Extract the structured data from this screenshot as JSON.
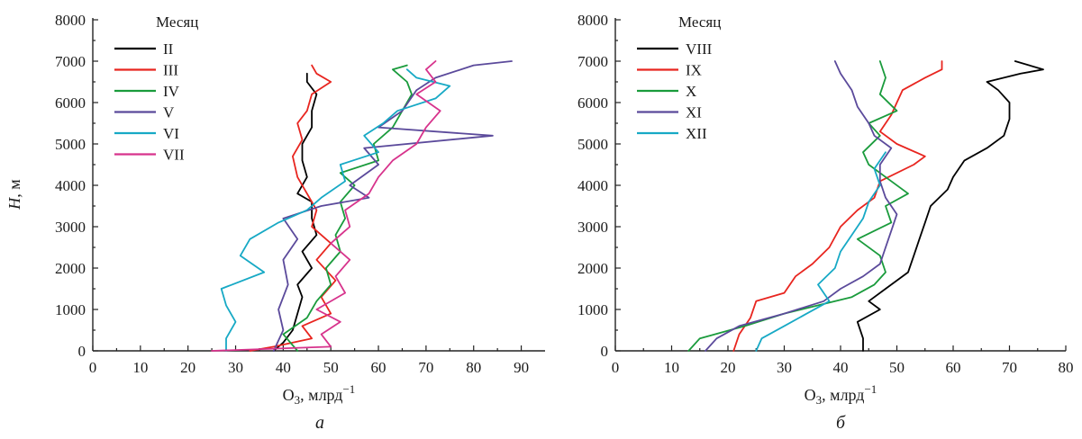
{
  "chart_data": [
    {
      "type": "line",
      "panel_label": "а",
      "xlabel_main": "O",
      "xlabel_sub": "3",
      "xlabel_unit": ", млрд",
      "xlabel_sup": "−1",
      "ylabel_main": "H",
      "ylabel_unit": ", м",
      "xlim": [
        0,
        95
      ],
      "ylim": [
        0,
        8000
      ],
      "xticks": [
        0,
        10,
        20,
        30,
        40,
        50,
        60,
        70,
        80,
        90
      ],
      "yticks": [
        0,
        1000,
        2000,
        3000,
        4000,
        5000,
        6000,
        7000,
        8000
      ],
      "show_ylabels": true,
      "legend": {
        "title": "Месяц",
        "position": "top-left"
      },
      "series": [
        {
          "name": "II",
          "color": "#000000",
          "points": [
            [
              38,
              0
            ],
            [
              40,
              200
            ],
            [
              42,
              500
            ],
            [
              43,
              900
            ],
            [
              44,
              1300
            ],
            [
              43,
              1600
            ],
            [
              46,
              2000
            ],
            [
              44,
              2400
            ],
            [
              47,
              2800
            ],
            [
              46,
              3200
            ],
            [
              46,
              3600
            ],
            [
              43,
              3800
            ],
            [
              45,
              4200
            ],
            [
              44,
              4600
            ],
            [
              44,
              5000
            ],
            [
              46,
              5400
            ],
            [
              46,
              5800
            ],
            [
              47,
              6200
            ],
            [
              45,
              6500
            ],
            [
              45,
              6700
            ]
          ]
        },
        {
          "name": "III",
          "color": "#e8251f",
          "points": [
            [
              33,
              0
            ],
            [
              38,
              100
            ],
            [
              46,
              300
            ],
            [
              44,
              600
            ],
            [
              50,
              900
            ],
            [
              48,
              1300
            ],
            [
              51,
              1700
            ],
            [
              47,
              2200
            ],
            [
              50,
              2600
            ],
            [
              46,
              3000
            ],
            [
              47,
              3400
            ],
            [
              45,
              3800
            ],
            [
              43,
              4200
            ],
            [
              42,
              4700
            ],
            [
              44,
              5100
            ],
            [
              43,
              5500
            ],
            [
              45,
              5800
            ],
            [
              46,
              6200
            ],
            [
              50,
              6500
            ],
            [
              47,
              6700
            ],
            [
              46,
              6900
            ]
          ]
        },
        {
          "name": "IV",
          "color": "#1a9b3c",
          "points": [
            [
              43,
              0
            ],
            [
              40,
              400
            ],
            [
              45,
              800
            ],
            [
              47,
              1200
            ],
            [
              50,
              1600
            ],
            [
              49,
              2000
            ],
            [
              52,
              2400
            ],
            [
              51,
              2800
            ],
            [
              53,
              3200
            ],
            [
              52,
              3600
            ],
            [
              55,
              4000
            ],
            [
              52,
              4300
            ],
            [
              60,
              4600
            ],
            [
              59,
              5000
            ],
            [
              63,
              5400
            ],
            [
              65,
              5800
            ],
            [
              67,
              6200
            ],
            [
              66,
              6500
            ],
            [
              63,
              6800
            ],
            [
              66,
              6900
            ]
          ]
        },
        {
          "name": "V",
          "color": "#5b4a9b",
          "points": [
            [
              38,
              0
            ],
            [
              40,
              500
            ],
            [
              39,
              1000
            ],
            [
              41,
              1600
            ],
            [
              40,
              2200
            ],
            [
              43,
              2700
            ],
            [
              40,
              3200
            ],
            [
              48,
              3500
            ],
            [
              58,
              3700
            ],
            [
              54,
              4000
            ],
            [
              60,
              4500
            ],
            [
              57,
              4900
            ],
            [
              84,
              5200
            ],
            [
              60,
              5400
            ],
            [
              65,
              5800
            ],
            [
              68,
              6300
            ],
            [
              72,
              6600
            ],
            [
              80,
              6900
            ],
            [
              88,
              7000
            ]
          ]
        },
        {
          "name": "VI",
          "color": "#17a9c5",
          "points": [
            [
              28,
              0
            ],
            [
              28,
              300
            ],
            [
              30,
              700
            ],
            [
              28,
              1100
            ],
            [
              27,
              1500
            ],
            [
              36,
              1900
            ],
            [
              31,
              2300
            ],
            [
              33,
              2700
            ],
            [
              39,
              3100
            ],
            [
              45,
              3400
            ],
            [
              48,
              3700
            ],
            [
              53,
              4100
            ],
            [
              52,
              4500
            ],
            [
              60,
              4800
            ],
            [
              57,
              5200
            ],
            [
              61,
              5500
            ],
            [
              64,
              5800
            ],
            [
              72,
              6100
            ],
            [
              75,
              6400
            ],
            [
              68,
              6600
            ],
            [
              66,
              6800
            ]
          ]
        },
        {
          "name": "VII",
          "color": "#d7338c",
          "points": [
            [
              25,
              0
            ],
            [
              50,
              100
            ],
            [
              48,
              400
            ],
            [
              52,
              700
            ],
            [
              47,
              1000
            ],
            [
              53,
              1400
            ],
            [
              51,
              1800
            ],
            [
              54,
              2200
            ],
            [
              50,
              2600
            ],
            [
              54,
              3000
            ],
            [
              53,
              3400
            ],
            [
              58,
              3800
            ],
            [
              60,
              4200
            ],
            [
              63,
              4600
            ],
            [
              68,
              5000
            ],
            [
              70,
              5400
            ],
            [
              73,
              5800
            ],
            [
              68,
              6200
            ],
            [
              72,
              6500
            ],
            [
              70,
              6800
            ],
            [
              72,
              7000
            ]
          ]
        }
      ]
    },
    {
      "type": "line",
      "panel_label": "б",
      "xlabel_main": "O",
      "xlabel_sub": "3",
      "xlabel_unit": ", млрд",
      "xlabel_sup": "−1",
      "xlim": [
        0,
        80
      ],
      "ylim": [
        0,
        8000
      ],
      "xticks": [
        0,
        10,
        20,
        30,
        40,
        50,
        60,
        70,
        80
      ],
      "yticks": [
        0,
        1000,
        2000,
        3000,
        4000,
        5000,
        6000,
        7000,
        8000
      ],
      "show_ylabels": true,
      "legend": {
        "title": "Месяц",
        "position": "top-left"
      },
      "series": [
        {
          "name": "VIII",
          "color": "#000000",
          "points": [
            [
              44,
              0
            ],
            [
              44,
              300
            ],
            [
              43,
              700
            ],
            [
              47,
              1000
            ],
            [
              45,
              1200
            ],
            [
              48,
              1500
            ],
            [
              52,
              1900
            ],
            [
              53,
              2300
            ],
            [
              54,
              2700
            ],
            [
              55,
              3100
            ],
            [
              56,
              3500
            ],
            [
              59,
              3900
            ],
            [
              60,
              4200
            ],
            [
              62,
              4600
            ],
            [
              66,
              4900
            ],
            [
              69,
              5200
            ],
            [
              70,
              5600
            ],
            [
              70,
              6000
            ],
            [
              68,
              6300
            ],
            [
              66,
              6500
            ],
            [
              72,
              6700
            ],
            [
              76,
              6800
            ],
            [
              71,
              7000
            ]
          ]
        },
        {
          "name": "IX",
          "color": "#e8251f",
          "points": [
            [
              21,
              0
            ],
            [
              22,
              400
            ],
            [
              24,
              800
            ],
            [
              25,
              1200
            ],
            [
              30,
              1400
            ],
            [
              32,
              1800
            ],
            [
              35,
              2100
            ],
            [
              38,
              2500
            ],
            [
              40,
              3000
            ],
            [
              43,
              3400
            ],
            [
              46,
              3700
            ],
            [
              47,
              4100
            ],
            [
              53,
              4500
            ],
            [
              55,
              4700
            ],
            [
              50,
              5000
            ],
            [
              47,
              5300
            ],
            [
              49,
              5700
            ],
            [
              50,
              6000
            ],
            [
              51,
              6300
            ],
            [
              55,
              6600
            ],
            [
              58,
              6800
            ],
            [
              58,
              7000
            ]
          ]
        },
        {
          "name": "X",
          "color": "#1a9b3c",
          "points": [
            [
              13,
              0
            ],
            [
              15,
              300
            ],
            [
              23,
              600
            ],
            [
              30,
              900
            ],
            [
              42,
              1300
            ],
            [
              46,
              1600
            ],
            [
              48,
              1900
            ],
            [
              47,
              2300
            ],
            [
              43,
              2700
            ],
            [
              49,
              3100
            ],
            [
              48,
              3500
            ],
            [
              52,
              3800
            ],
            [
              48,
              4200
            ],
            [
              45,
              4500
            ],
            [
              44,
              4800
            ],
            [
              47,
              5200
            ],
            [
              45,
              5500
            ],
            [
              50,
              5800
            ],
            [
              47,
              6200
            ],
            [
              48,
              6600
            ],
            [
              47,
              7000
            ]
          ]
        },
        {
          "name": "XI",
          "color": "#5b4a9b",
          "points": [
            [
              16,
              0
            ],
            [
              18,
              300
            ],
            [
              22,
              600
            ],
            [
              30,
              900
            ],
            [
              37,
              1200
            ],
            [
              40,
              1500
            ],
            [
              44,
              1800
            ],
            [
              47,
              2100
            ],
            [
              48,
              2500
            ],
            [
              49,
              2900
            ],
            [
              50,
              3300
            ],
            [
              48,
              3700
            ],
            [
              47,
              4100
            ],
            [
              47,
              4500
            ],
            [
              49,
              4900
            ],
            [
              46,
              5200
            ],
            [
              45,
              5500
            ],
            [
              43,
              5900
            ],
            [
              42,
              6300
            ],
            [
              40,
              6700
            ],
            [
              39,
              7000
            ]
          ]
        },
        {
          "name": "XII",
          "color": "#17a9c5",
          "points": [
            [
              25,
              0
            ],
            [
              26,
              300
            ],
            [
              30,
              600
            ],
            [
              34,
              900
            ],
            [
              38,
              1200
            ],
            [
              36,
              1600
            ],
            [
              39,
              2000
            ],
            [
              40,
              2400
            ],
            [
              42,
              2800
            ],
            [
              44,
              3200
            ],
            [
              45,
              3600
            ],
            [
              47,
              4000
            ],
            [
              46,
              4400
            ],
            [
              48,
              4800
            ]
          ]
        }
      ]
    }
  ]
}
